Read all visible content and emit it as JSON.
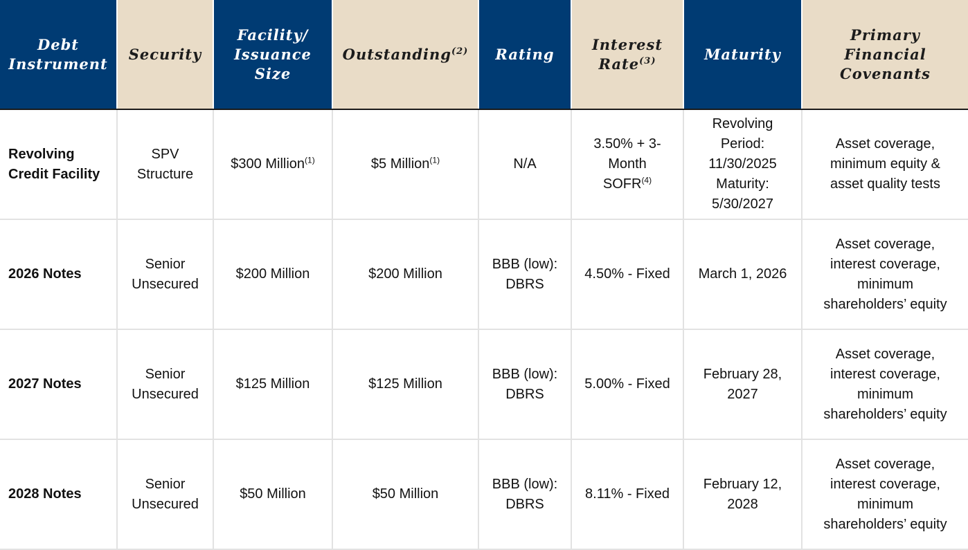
{
  "headers": [
    {
      "lines": [
        "Debt",
        "Instrument"
      ],
      "sup": ""
    },
    {
      "lines": [
        "Security"
      ],
      "sup": ""
    },
    {
      "lines": [
        "Facility/",
        "Issuance",
        "Size"
      ],
      "sup": ""
    },
    {
      "lines": [
        "Outstanding"
      ],
      "sup": "(2)"
    },
    {
      "lines": [
        "Rating"
      ],
      "sup": ""
    },
    {
      "lines": [
        "Interest",
        "Rate"
      ],
      "sup": "(3)"
    },
    {
      "lines": [
        "Maturity"
      ],
      "sup": ""
    },
    {
      "lines": [
        "Primary",
        "Financial",
        "Covenants"
      ],
      "sup": ""
    }
  ],
  "rows": [
    {
      "instrument": [
        "Revolving",
        "Credit Facility"
      ],
      "security": [
        "SPV",
        "Structure"
      ],
      "size": {
        "text": "$300 Million",
        "sup": "(1)"
      },
      "outstanding": {
        "text": "$5 Million",
        "sup": "(1)"
      },
      "rating": [
        "N/A"
      ],
      "rate": {
        "lines": [
          "3.50% + 3-",
          "Month",
          "SOFR"
        ],
        "sup": "(4)"
      },
      "maturity": [
        "Revolving",
        "Period:",
        "11/30/2025",
        "Maturity:",
        "5/30/2027"
      ],
      "covenants": [
        "Asset coverage,",
        "minimum equity &",
        "asset quality tests"
      ]
    },
    {
      "instrument": [
        "2026 Notes"
      ],
      "security": [
        "Senior",
        "Unsecured"
      ],
      "size": {
        "text": "$200 Million",
        "sup": ""
      },
      "outstanding": {
        "text": "$200 Million",
        "sup": ""
      },
      "rating": [
        "BBB (low):",
        "DBRS"
      ],
      "rate": {
        "lines": [
          "4.50% - Fixed"
        ],
        "sup": ""
      },
      "maturity": [
        "March 1, 2026"
      ],
      "covenants": [
        "Asset coverage,",
        "interest coverage,",
        "minimum",
        "shareholders’ equity"
      ]
    },
    {
      "instrument": [
        "2027 Notes"
      ],
      "security": [
        "Senior",
        "Unsecured"
      ],
      "size": {
        "text": "$125 Million",
        "sup": ""
      },
      "outstanding": {
        "text": "$125 Million",
        "sup": ""
      },
      "rating": [
        "BBB (low):",
        "DBRS"
      ],
      "rate": {
        "lines": [
          "5.00% - Fixed"
        ],
        "sup": ""
      },
      "maturity": [
        "February 28,",
        "2027"
      ],
      "covenants": [
        "Asset coverage,",
        "interest coverage,",
        "minimum",
        "shareholders’ equity"
      ]
    },
    {
      "instrument": [
        "2028 Notes"
      ],
      "security": [
        "Senior",
        "Unsecured"
      ],
      "size": {
        "text": "$50 Million",
        "sup": ""
      },
      "outstanding": {
        "text": "$50 Million",
        "sup": ""
      },
      "rating": [
        "BBB (low):",
        "DBRS"
      ],
      "rate": {
        "lines": [
          "8.11% - Fixed"
        ],
        "sup": ""
      },
      "maturity": [
        "February 12,",
        "2028"
      ],
      "covenants": [
        "Asset coverage,",
        "interest coverage,",
        "minimum",
        "shareholders’ equity"
      ]
    }
  ],
  "colors": {
    "header_blue": "#003b73",
    "header_tan": "#e9dcc7",
    "grid": "#e2e2e2"
  }
}
